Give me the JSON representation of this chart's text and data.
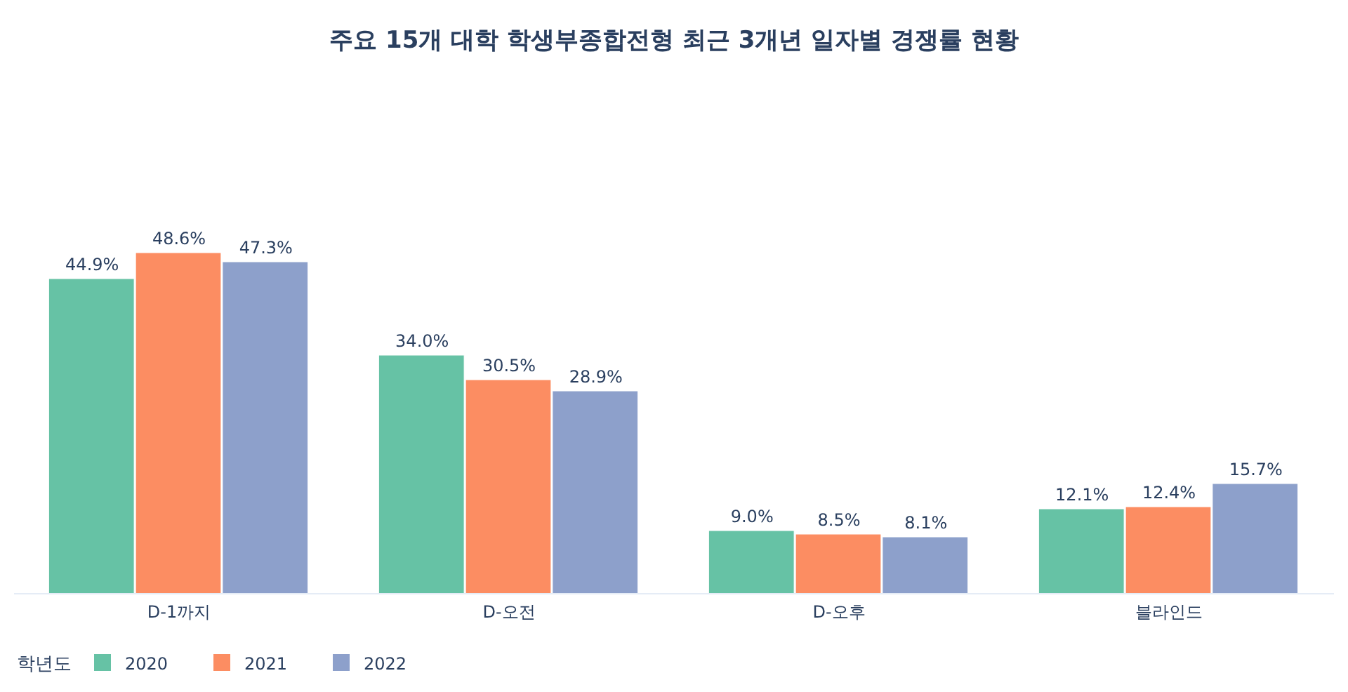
{
  "chart_data": {
    "type": "bar",
    "title": "주요 15개 대학 학생부종합전형 최근 3개년 일자별 경쟁률 현황",
    "categories": [
      "D-1까지",
      "D-오전",
      "D-오후",
      "블라인드"
    ],
    "series": [
      {
        "name": "2020",
        "color": "#66c2a5",
        "values": [
          44.9,
          34.0,
          9.0,
          12.1
        ],
        "value_labels": [
          "44.9%",
          "34.0%",
          "9.0%",
          "12.1%"
        ]
      },
      {
        "name": "2021",
        "color": "#fc8d62",
        "values": [
          48.6,
          30.5,
          8.5,
          12.4
        ],
        "value_labels": [
          "48.6%",
          "30.5%",
          "8.5%",
          "12.4%"
        ]
      },
      {
        "name": "2022",
        "color": "#8da0cb",
        "values": [
          47.3,
          28.9,
          8.1,
          15.7
        ],
        "value_labels": [
          "47.3%",
          "28.9%",
          "8.1%",
          "15.7%"
        ]
      }
    ],
    "legend": "bottom left",
    "legend_title": "학년도"
  }
}
